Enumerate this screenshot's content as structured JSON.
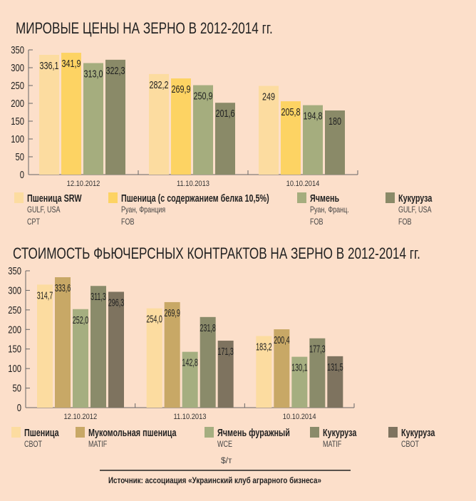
{
  "colors": {
    "background": "#fcdfca",
    "axis": "#555555",
    "text": "#222222"
  },
  "chart_data": [
    {
      "type": "bar",
      "title": "МИРОВЫЕ ЦЕНЫ НА ЗЕРНО В 2012-2014 гг.",
      "categories": [
        "12.10.2012",
        "11.10.2013",
        "10.10.2014"
      ],
      "ylim": [
        0,
        350
      ],
      "yticks": [
        0,
        50,
        100,
        150,
        200,
        250,
        300,
        350
      ],
      "grid": false,
      "legend_position": "bottom",
      "series": [
        {
          "name": "Пшеница SRW",
          "sub": [
            "GULF, USA",
            "CPT"
          ],
          "color": "#fcdca0",
          "values": [
            336.1,
            282.2,
            249
          ],
          "labels": [
            "336,1",
            "282,2",
            "249"
          ]
        },
        {
          "name": "Пшеница (с содержанием белка 10,5%)",
          "sub": [
            "Руан, Франция",
            "FOB"
          ],
          "color": "#fdd363",
          "values": [
            341.9,
            269.9,
            205.8
          ],
          "labels": [
            "341,9",
            "269,9",
            "205,8"
          ]
        },
        {
          "name": "Ячмень",
          "sub": [
            "Руан, Франц.",
            "FOB"
          ],
          "color": "#a5ad7e",
          "values": [
            313.0,
            250.9,
            194.8
          ],
          "labels": [
            "313,0",
            "250,9",
            "194,8"
          ]
        },
        {
          "name": "Кукуруза",
          "sub": [
            "GULF, USA",
            "FOB"
          ],
          "color": "#8a8a68",
          "values": [
            322.3,
            201.6,
            180
          ],
          "labels": [
            "322,3",
            "201,6",
            "180"
          ]
        }
      ]
    },
    {
      "type": "bar",
      "title": "СТОИМОСТЬ ФЬЮЧЕРСНЫХ КОНТРАКТОВ НА ЗЕРНО В 2012-2014 гг.",
      "categories": [
        "12.10.2012",
        "11.10.2013",
        "10.10.2014"
      ],
      "ylim": [
        0,
        350
      ],
      "yticks": [
        0,
        50,
        100,
        150,
        200,
        250,
        300,
        350
      ],
      "grid": false,
      "legend_position": "bottom",
      "series": [
        {
          "name": "Пшеница",
          "sub": [
            "CBOT"
          ],
          "color": "#fcdca0",
          "values": [
            314.7,
            254.0,
            183.2
          ],
          "labels": [
            "314,7",
            "254,0",
            "183,2"
          ]
        },
        {
          "name": "Мукомольная пшеница",
          "sub": [
            "MATIF"
          ],
          "color": "#c8a866",
          "values": [
            333.6,
            269.9,
            200.4
          ],
          "labels": [
            "333,6",
            "269,9",
            "200,4"
          ]
        },
        {
          "name": "Ячмень фуражный",
          "sub": [
            "WCE"
          ],
          "color": "#a5ae80",
          "values": [
            252.0,
            142.8,
            130.1
          ],
          "labels": [
            "252,0",
            "142,8",
            "130,1"
          ]
        },
        {
          "name": "Кукуруза",
          "sub": [
            "MATIF"
          ],
          "color": "#8a8b6a",
          "values": [
            311.3,
            231.8,
            177.3
          ],
          "labels": [
            "311,3",
            "231,8",
            "177,3"
          ]
        },
        {
          "name": "Кукуруза",
          "sub": [
            "CBOT"
          ],
          "color": "#7e735f",
          "values": [
            296.3,
            171.3,
            131.5
          ],
          "labels": [
            "296,3",
            "171,3",
            "131,5"
          ]
        }
      ]
    }
  ],
  "unit": "$/т",
  "source": "Источник: ассоциация «Украинский клуб аграрного бизнеса»"
}
